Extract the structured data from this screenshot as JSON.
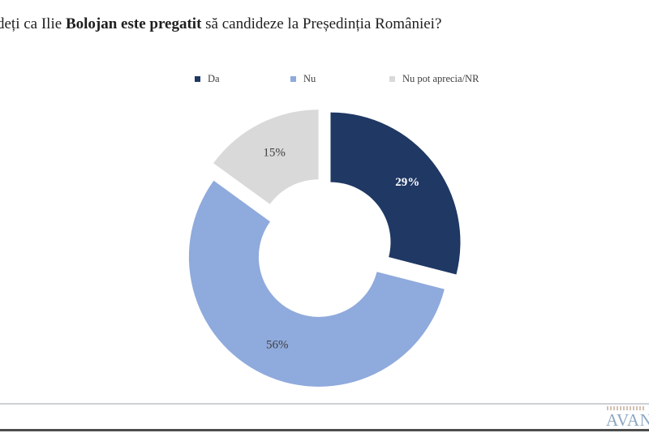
{
  "title": {
    "prefix": "deți ca Ilie ",
    "bold": "Bolojan este pregatit",
    "suffix": " să candideze la Președinția României?"
  },
  "chart_data": {
    "type": "pie",
    "subtype": "doughnut-exploded",
    "title": "deți ca Ilie Bolojan este pregatit să candideze la Președinția României?",
    "categories": [
      "Da",
      "Nu",
      "Nu pot aprecia/NR"
    ],
    "values": [
      29,
      56,
      15
    ],
    "data_labels": [
      "29%",
      "56%",
      "15%"
    ],
    "slice_ids": [
      "da",
      "nu",
      "nr"
    ],
    "colors": [
      "#1F3864",
      "#8FAADC",
      "#D9D9D9"
    ],
    "label_colors": [
      "#FFFFFF",
      "#404040",
      "#404040"
    ],
    "label_bold": [
      true,
      false,
      false
    ],
    "start_angle_deg": 0,
    "clockwise": true,
    "legend_position": "top"
  },
  "footer": {
    "logo_text": "AVAN",
    "separator_color": "#cdd0d4",
    "bottom_bar_color": "#4d4d4d",
    "logo_color": "#8ca7c2"
  }
}
